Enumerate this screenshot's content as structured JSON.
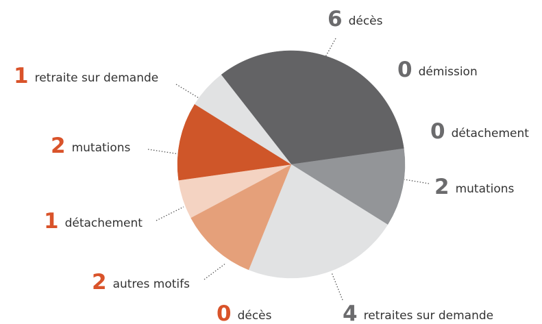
{
  "chart_data": {
    "type": "pie",
    "categories": [
      "décès",
      "démission",
      "détachement",
      "mutations",
      "retraites sur demande",
      "décès",
      "autres motifs",
      "détachement",
      "mutations",
      "retraite sur demande"
    ],
    "values": [
      6,
      0,
      0,
      2,
      4,
      0,
      2,
      1,
      2,
      1
    ],
    "colors": [
      "#636365",
      "#636365",
      "#939598",
      "#939598",
      "#e1e2e3",
      "#e5a07a",
      "#e5a07a",
      "#f4d3c2",
      "#cf5629",
      "#e1e2e3"
    ],
    "label_colors": [
      "#6b6b6d",
      "#6b6b6d",
      "#6b6b6d",
      "#6b6b6d",
      "#6b6b6d",
      "#d9532a",
      "#d9532a",
      "#d9532a",
      "#d9532a",
      "#d9532a"
    ]
  }
}
